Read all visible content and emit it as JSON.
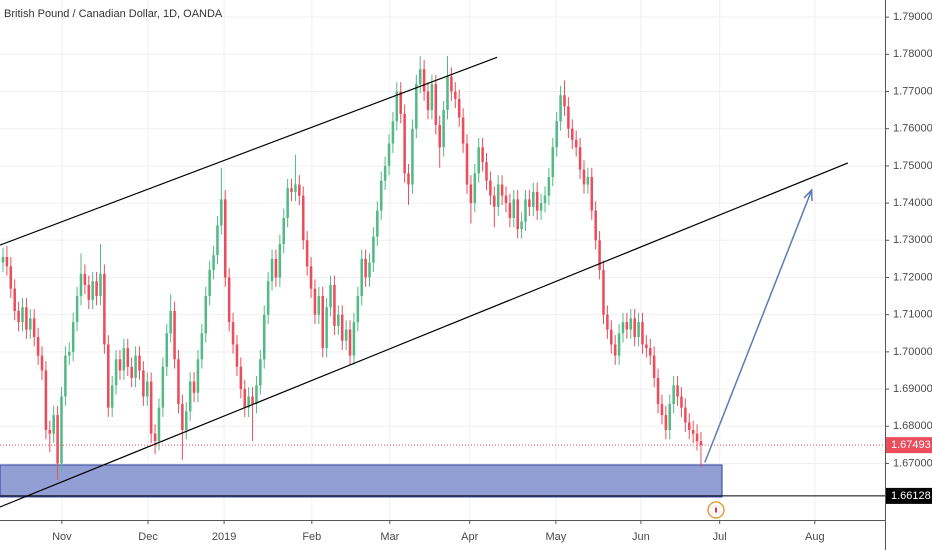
{
  "chart_data": {
    "type": "candlestick",
    "title": "British Pound / Canadian Dollar, 1D, OANDA",
    "up_color": "#53b987",
    "down_color": "#eb4d5c",
    "grid": true,
    "xlim": [
      -0.77,
      226.2
    ],
    "xticks": [
      {
        "value": 15.1,
        "label": "Nov"
      },
      {
        "value": 37.2,
        "label": "Dec"
      },
      {
        "value": 56.7,
        "label": "2019"
      },
      {
        "value": 79.2,
        "label": "Feb"
      },
      {
        "value": 99.2,
        "label": "Mar"
      },
      {
        "value": 119.7,
        "label": "Apr"
      },
      {
        "value": 141.8,
        "label": "May"
      },
      {
        "value": 163.6,
        "label": "Jun"
      },
      {
        "value": 183.8,
        "label": "Jul"
      },
      {
        "value": 208.2,
        "label": "Aug"
      }
    ],
    "ylim": [
      1.6548,
      1.7946
    ],
    "yticks": [
      {
        "value": 1.67,
        "label": "1.67000"
      },
      {
        "value": 1.68,
        "label": "1.68000"
      },
      {
        "value": 1.69,
        "label": "1.69000"
      },
      {
        "value": 1.7,
        "label": "1.70000"
      },
      {
        "value": 1.71,
        "label": "1.71000"
      },
      {
        "value": 1.72,
        "label": "1.72000"
      },
      {
        "value": 1.73,
        "label": "1.73000"
      },
      {
        "value": 1.74,
        "label": "1.74000"
      },
      {
        "value": 1.75,
        "label": "1.75000"
      },
      {
        "value": 1.76,
        "label": "1.76000"
      },
      {
        "value": 1.77,
        "label": "1.77000"
      },
      {
        "value": 1.78,
        "label": "1.78000"
      },
      {
        "value": 1.79,
        "label": "1.79000"
      }
    ],
    "open": [
      1.724,
      1.7255,
      1.723,
      1.717,
      1.711,
      1.708,
      1.712,
      1.706,
      1.709,
      1.704,
      1.699,
      1.695,
      1.679,
      1.678,
      1.683,
      1.67,
      1.688,
      1.699,
      1.7,
      1.708,
      1.715,
      1.721,
      1.718,
      1.714,
      1.719,
      1.715,
      1.721,
      1.702,
      1.685,
      1.691,
      1.698,
      1.695,
      1.701,
      1.696,
      1.693,
      1.699,
      1.695,
      1.688,
      1.692,
      1.678,
      1.676,
      1.685,
      1.696,
      1.705,
      1.711,
      1.698,
      1.686,
      1.679,
      1.684,
      1.692,
      1.689,
      1.698,
      1.705,
      1.715,
      1.722,
      1.726,
      1.734,
      1.741,
      1.72,
      1.708,
      1.702,
      1.696,
      1.69,
      1.685,
      1.688,
      1.686,
      1.691,
      1.698,
      1.71,
      1.719,
      1.725,
      1.72,
      1.729,
      1.736,
      1.744,
      1.743,
      1.745,
      1.742,
      1.73,
      1.723,
      1.717,
      1.71,
      1.715,
      1.701,
      1.712,
      1.718,
      1.707,
      1.71,
      1.703,
      1.706,
      1.699,
      1.708,
      1.715,
      1.725,
      1.72,
      1.724,
      1.731,
      1.738,
      1.746,
      1.75,
      1.756,
      1.762,
      1.77,
      1.764,
      1.748,
      1.745,
      1.76,
      1.772,
      1.776,
      1.77,
      1.765,
      1.772,
      1.761,
      1.755,
      1.765,
      1.774,
      1.77,
      1.768,
      1.763,
      1.756,
      1.745,
      1.74,
      1.748,
      1.755,
      1.751,
      1.746,
      1.742,
      1.739,
      1.745,
      1.742,
      1.74,
      1.736,
      1.741,
      1.733,
      1.735,
      1.741,
      1.739,
      1.743,
      1.738,
      1.74,
      1.742,
      1.747,
      1.755,
      1.762,
      1.769,
      1.766,
      1.76,
      1.757,
      1.755,
      1.749,
      1.745,
      1.747,
      1.738,
      1.73,
      1.722,
      1.71,
      1.706,
      1.702,
      1.699,
      1.705,
      1.708,
      1.706,
      1.709,
      1.704,
      1.708,
      1.702,
      1.701,
      1.699,
      1.693,
      1.686,
      1.683,
      1.679,
      1.686,
      1.691,
      1.688,
      1.685,
      1.681,
      1.679,
      1.678,
      1.676
    ],
    "high": [
      1.728,
      1.7285,
      1.7255,
      1.7195,
      1.7135,
      1.7145,
      1.7145,
      1.7115,
      1.7115,
      1.7065,
      1.7015,
      1.6975,
      1.6815,
      1.6855,
      1.6855,
      1.6905,
      1.7015,
      1.7025,
      1.7105,
      1.7175,
      1.7265,
      1.7235,
      1.7205,
      1.7215,
      1.7215,
      1.729,
      1.7235,
      1.7045,
      1.6935,
      1.7005,
      1.7005,
      1.7035,
      1.7035,
      1.6985,
      1.7015,
      1.7015,
      1.6975,
      1.6945,
      1.6945,
      1.6805,
      1.6875,
      1.6985,
      1.7075,
      1.7155,
      1.7135,
      1.7005,
      1.6885,
      1.6865,
      1.6945,
      1.6945,
      1.7005,
      1.7075,
      1.7175,
      1.7245,
      1.7285,
      1.7365,
      1.7495,
      1.7435,
      1.7225,
      1.7105,
      1.7045,
      1.6985,
      1.6925,
      1.6905,
      1.6905,
      1.6935,
      1.7005,
      1.7125,
      1.7215,
      1.7275,
      1.7275,
      1.7315,
      1.7385,
      1.7465,
      1.7465,
      1.753,
      1.7475,
      1.7445,
      1.7325,
      1.7255,
      1.7195,
      1.7175,
      1.7175,
      1.7145,
      1.7205,
      1.7205,
      1.7125,
      1.7125,
      1.7085,
      1.7085,
      1.7105,
      1.7175,
      1.7275,
      1.7275,
      1.7265,
      1.7335,
      1.7405,
      1.7485,
      1.7525,
      1.7585,
      1.7645,
      1.7725,
      1.7725,
      1.7665,
      1.7505,
      1.7625,
      1.7745,
      1.7795,
      1.7785,
      1.7725,
      1.7745,
      1.7745,
      1.7635,
      1.7675,
      1.7795,
      1.7765,
      1.7725,
      1.7705,
      1.7655,
      1.7585,
      1.7475,
      1.7505,
      1.7575,
      1.7575,
      1.7535,
      1.7485,
      1.7445,
      1.7475,
      1.7475,
      1.7445,
      1.7425,
      1.7435,
      1.7435,
      1.7375,
      1.7435,
      1.7435,
      1.7455,
      1.7455,
      1.7425,
      1.7445,
      1.7495,
      1.7575,
      1.7645,
      1.7715,
      1.773,
      1.7685,
      1.7625,
      1.7595,
      1.7575,
      1.7515,
      1.7495,
      1.7495,
      1.7405,
      1.7325,
      1.7245,
      1.7125,
      1.7085,
      1.7045,
      1.7075,
      1.7105,
      1.7105,
      1.7115,
      1.7115,
      1.7105,
      1.7105,
      1.7045,
      1.7035,
      1.7015,
      1.6955,
      1.6885,
      1.6855,
      1.6885,
      1.6935,
      1.6935,
      1.6905,
      1.6875,
      1.6835,
      1.6815,
      1.6805,
      1.6785
    ],
    "low": [
      1.7215,
      1.7205,
      1.7145,
      1.7085,
      1.7055,
      1.7055,
      1.7035,
      1.7035,
      1.7015,
      1.6965,
      1.6925,
      1.6765,
      1.673,
      1.6755,
      1.6655,
      1.6675,
      1.6855,
      1.6965,
      1.6975,
      1.7055,
      1.7125,
      1.7155,
      1.7115,
      1.7115,
      1.7125,
      1.7125,
      1.6995,
      1.6825,
      1.6825,
      1.6885,
      1.6925,
      1.6925,
      1.6935,
      1.6905,
      1.6905,
      1.6925,
      1.6855,
      1.6855,
      1.6755,
      1.6725,
      1.6735,
      1.6825,
      1.6935,
      1.7025,
      1.6955,
      1.6835,
      1.671,
      1.6765,
      1.6815,
      1.6865,
      1.6865,
      1.6955,
      1.7025,
      1.7125,
      1.7195,
      1.7235,
      1.7315,
      1.7175,
      1.7055,
      1.6995,
      1.6935,
      1.6875,
      1.6825,
      1.6825,
      1.676,
      1.6835,
      1.6885,
      1.6955,
      1.7075,
      1.7165,
      1.7175,
      1.7175,
      1.7265,
      1.7335,
      1.7405,
      1.7405,
      1.7395,
      1.7275,
      1.7205,
      1.7145,
      1.7075,
      1.7075,
      1.6985,
      1.6985,
      1.7095,
      1.7045,
      1.7045,
      1.7005,
      1.7005,
      1.6965,
      1.6965,
      1.7055,
      1.7125,
      1.7175,
      1.7175,
      1.7215,
      1.7285,
      1.7355,
      1.7435,
      1.7475,
      1.7535,
      1.7595,
      1.7615,
      1.7455,
      1.7395,
      1.7425,
      1.7575,
      1.7695,
      1.7675,
      1.7625,
      1.7625,
      1.7585,
      1.7495,
      1.7525,
      1.7625,
      1.7675,
      1.7655,
      1.7605,
      1.7535,
      1.7425,
      1.7345,
      1.7375,
      1.7455,
      1.7485,
      1.7435,
      1.7395,
      1.7335,
      1.7365,
      1.7395,
      1.7375,
      1.7335,
      1.7335,
      1.7305,
      1.7305,
      1.7325,
      1.7365,
      1.7365,
      1.7355,
      1.7355,
      1.7375,
      1.7395,
      1.7445,
      1.7525,
      1.7595,
      1.7635,
      1.7575,
      1.7545,
      1.7525,
      1.7465,
      1.7425,
      1.7425,
      1.7355,
      1.7275,
      1.7195,
      1.7075,
      1.7035,
      1.6995,
      1.6965,
      1.6965,
      1.7025,
      1.7035,
      1.7035,
      1.7015,
      1.7015,
      1.6995,
      1.6985,
      1.6965,
      1.6905,
      1.6835,
      1.6805,
      1.6765,
      1.6765,
      1.6835,
      1.6855,
      1.6825,
      1.6785,
      1.6765,
      1.6755,
      1.6735,
      1.669
    ],
    "close": [
      1.7255,
      1.723,
      1.717,
      1.711,
      1.708,
      1.712,
      1.706,
      1.709,
      1.704,
      1.699,
      1.695,
      1.679,
      1.678,
      1.683,
      1.67,
      1.688,
      1.699,
      1.7,
      1.708,
      1.715,
      1.721,
      1.718,
      1.714,
      1.719,
      1.715,
      1.721,
      1.702,
      1.685,
      1.691,
      1.698,
      1.695,
      1.701,
      1.696,
      1.693,
      1.699,
      1.695,
      1.688,
      1.692,
      1.678,
      1.676,
      1.685,
      1.696,
      1.705,
      1.711,
      1.698,
      1.686,
      1.679,
      1.684,
      1.692,
      1.689,
      1.698,
      1.705,
      1.715,
      1.722,
      1.726,
      1.734,
      1.741,
      1.72,
      1.708,
      1.702,
      1.696,
      1.69,
      1.685,
      1.688,
      1.686,
      1.691,
      1.698,
      1.71,
      1.719,
      1.725,
      1.72,
      1.729,
      1.736,
      1.744,
      1.743,
      1.745,
      1.742,
      1.73,
      1.723,
      1.717,
      1.71,
      1.715,
      1.701,
      1.712,
      1.718,
      1.707,
      1.71,
      1.703,
      1.706,
      1.699,
      1.708,
      1.715,
      1.725,
      1.72,
      1.724,
      1.731,
      1.738,
      1.746,
      1.75,
      1.756,
      1.762,
      1.77,
      1.764,
      1.748,
      1.745,
      1.76,
      1.772,
      1.776,
      1.77,
      1.765,
      1.772,
      1.761,
      1.755,
      1.765,
      1.774,
      1.77,
      1.768,
      1.763,
      1.756,
      1.745,
      1.74,
      1.748,
      1.755,
      1.751,
      1.746,
      1.742,
      1.739,
      1.745,
      1.742,
      1.74,
      1.736,
      1.741,
      1.733,
      1.735,
      1.741,
      1.739,
      1.743,
      1.738,
      1.74,
      1.742,
      1.747,
      1.755,
      1.762,
      1.769,
      1.766,
      1.76,
      1.757,
      1.755,
      1.749,
      1.745,
      1.747,
      1.738,
      1.73,
      1.722,
      1.71,
      1.706,
      1.702,
      1.699,
      1.705,
      1.708,
      1.706,
      1.709,
      1.704,
      1.708,
      1.702,
      1.701,
      1.699,
      1.693,
      1.686,
      1.683,
      1.679,
      1.686,
      1.691,
      1.688,
      1.685,
      1.681,
      1.679,
      1.678,
      1.676,
      1.67493
    ],
    "trendlines": [
      {
        "x": [
          -0.77,
          126.7
        ],
        "y": [
          1.7287,
          1.7792
        ],
        "color": "#000000"
      },
      {
        "x": [
          -0.77,
          216.7
        ],
        "y": [
          1.6583,
          1.7508
        ],
        "color": "#000000"
      }
    ],
    "arrow": {
      "x": [
        180,
        207.4
      ],
      "y": [
        1.6703,
        1.7435
      ],
      "color": "#5b7bb8"
    },
    "zone": {
      "x": [
        -0.77,
        184.4
      ],
      "y": [
        1.661,
        1.6696
      ],
      "color": "#8c9ad2",
      "border": "#2d3f9c"
    },
    "levels": [
      {
        "value": 1.66128,
        "color": "#000000"
      }
    ],
    "current_price": {
      "value": 1.67493,
      "color": "#eb4d5c"
    }
  }
}
